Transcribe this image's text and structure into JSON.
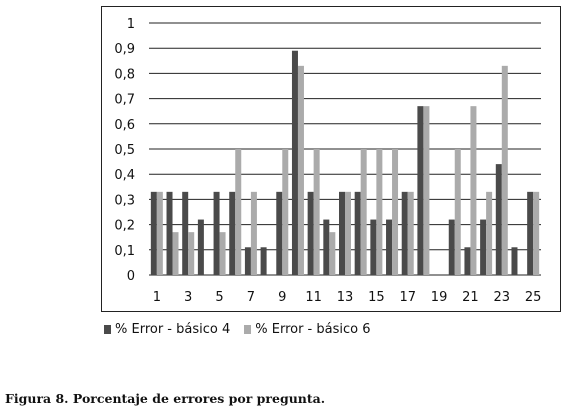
{
  "chart_data": {
    "type": "bar",
    "categories": [
      "1",
      "2",
      "3",
      "4",
      "5",
      "6",
      "7",
      "8",
      "9",
      "10",
      "11",
      "12",
      "13",
      "14",
      "15",
      "16",
      "17",
      "18",
      "19",
      "20",
      "21",
      "22",
      "23",
      "24",
      "25"
    ],
    "x_tick_labels": [
      "1",
      "3",
      "5",
      "7",
      "9",
      "11",
      "13",
      "15",
      "17",
      "19",
      "21",
      "23",
      "25"
    ],
    "y_tick_labels": [
      "0",
      "0,1",
      "0,2",
      "0,3",
      "0,4",
      "0,5",
      "0,6",
      "0,7",
      "0,8",
      "0,9",
      "1"
    ],
    "ylim": [
      0,
      1
    ],
    "grid": true,
    "legend_position": "bottom",
    "series": [
      {
        "name": "% Error - básico 4",
        "color": "#4a4a4a",
        "values": [
          0.33,
          0.33,
          0.33,
          0.22,
          0.33,
          0.33,
          0.11,
          0.11,
          0.33,
          0.89,
          0.33,
          0.22,
          0.33,
          0.33,
          0.22,
          0.22,
          0.33,
          0.67,
          0,
          0.22,
          0.11,
          0.22,
          0.44,
          0.11,
          0.33
        ]
      },
      {
        "name": "% Error - básico 6",
        "color": "#ababab",
        "values": [
          0.33,
          0.17,
          0.17,
          0,
          0.17,
          0.5,
          0.33,
          0,
          0.5,
          0.83,
          0.5,
          0.17,
          0.33,
          0.5,
          0.5,
          0.5,
          0.33,
          0.67,
          0,
          0.5,
          0.67,
          0.33,
          0.83,
          0,
          0.33
        ]
      }
    ]
  },
  "caption": "Figura 8. Porcentaje de errores por pregunta."
}
